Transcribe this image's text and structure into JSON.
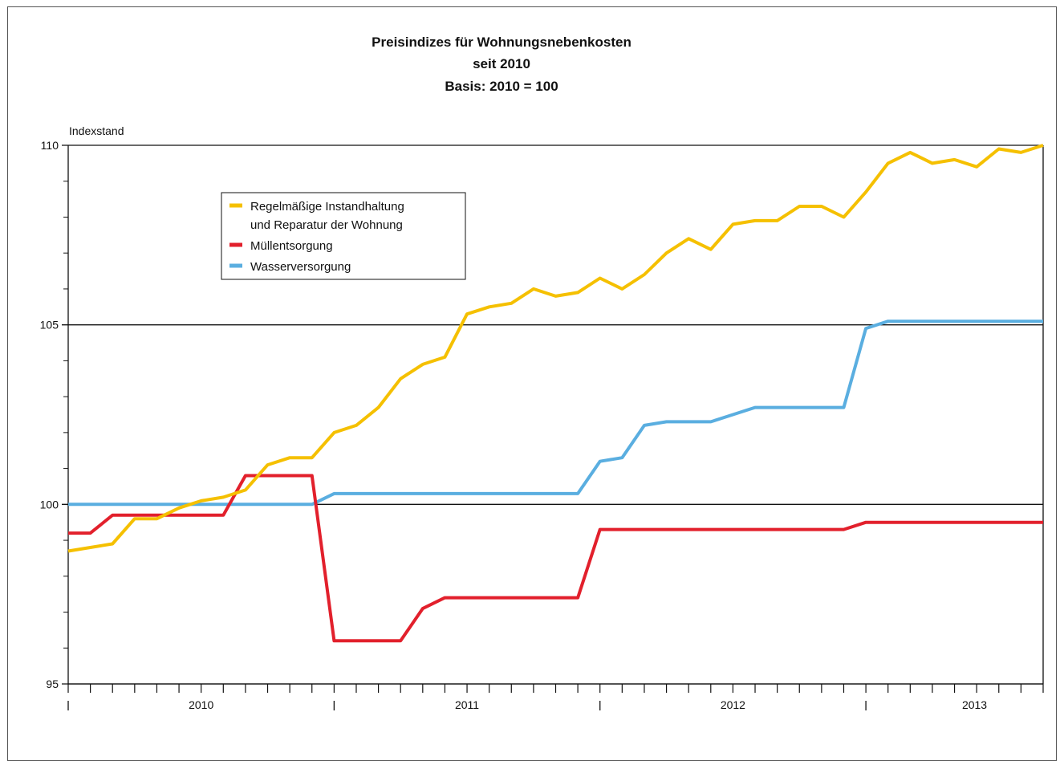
{
  "chart_data": {
    "type": "line",
    "title_lines": [
      "Preisindizes für Wohnungsnebenkosten",
      "seit 2010",
      "Basis: 2010 = 100"
    ],
    "ylabel": "Indexstand",
    "xlabel": "",
    "ylim": [
      95,
      110
    ],
    "yticks": [
      95,
      100,
      105,
      110
    ],
    "year_labels": [
      "2010",
      "2011",
      "2012",
      "2013"
    ],
    "months": 45,
    "grid": "horizontal at 100 and 105",
    "legend_position": "upper-left",
    "series": [
      {
        "name": "Regelmäßige Instandhaltung und Reparatur der Wohnung",
        "legend_lines": [
          "Regelmäßige Instandhaltung",
          "und Reparatur der Wohnung"
        ],
        "color": "#f5c000",
        "values": [
          98.7,
          98.8,
          98.9,
          99.6,
          99.6,
          99.9,
          100.1,
          100.2,
          100.4,
          101.1,
          101.3,
          101.3,
          102.0,
          102.2,
          102.7,
          103.5,
          103.9,
          104.1,
          105.3,
          105.5,
          105.6,
          106.0,
          105.8,
          105.9,
          106.3,
          106.0,
          106.4,
          107.0,
          107.4,
          107.1,
          107.8,
          107.9,
          107.9,
          108.3,
          108.3,
          108.0,
          108.7,
          109.5,
          109.8,
          109.5,
          109.6,
          109.4,
          109.9,
          109.8,
          110.0
        ]
      },
      {
        "name": "Müllentsorgung",
        "legend_lines": [
          "Müllentsorgung"
        ],
        "color": "#e2202c",
        "values": [
          99.2,
          99.2,
          99.7,
          99.7,
          99.7,
          99.7,
          99.7,
          99.7,
          100.8,
          100.8,
          100.8,
          100.8,
          96.2,
          96.2,
          96.2,
          96.2,
          97.1,
          97.4,
          97.4,
          97.4,
          97.4,
          97.4,
          97.4,
          97.4,
          99.3,
          99.3,
          99.3,
          99.3,
          99.3,
          99.3,
          99.3,
          99.3,
          99.3,
          99.3,
          99.3,
          99.3,
          99.5,
          99.5,
          99.5,
          99.5,
          99.5,
          99.5,
          99.5,
          99.5,
          99.5
        ]
      },
      {
        "name": "Wasserversorgung",
        "legend_lines": [
          "Wasserversorgung"
        ],
        "color": "#5aaee0",
        "values": [
          100.0,
          100.0,
          100.0,
          100.0,
          100.0,
          100.0,
          100.0,
          100.0,
          100.0,
          100.0,
          100.0,
          100.0,
          100.3,
          100.3,
          100.3,
          100.3,
          100.3,
          100.3,
          100.3,
          100.3,
          100.3,
          100.3,
          100.3,
          100.3,
          101.2,
          101.3,
          102.2,
          102.3,
          102.3,
          102.3,
          102.5,
          102.7,
          102.7,
          102.7,
          102.7,
          102.7,
          104.9,
          105.1,
          105.1,
          105.1,
          105.1,
          105.1,
          105.1,
          105.1,
          105.1
        ]
      }
    ]
  }
}
